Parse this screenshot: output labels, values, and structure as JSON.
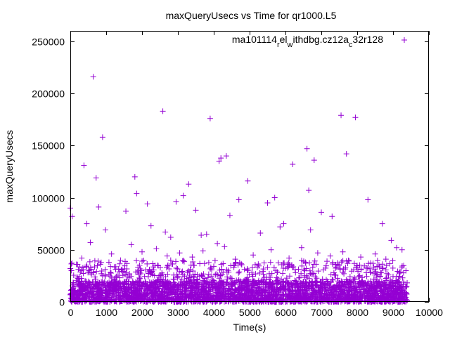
{
  "chart_data": {
    "type": "scatter",
    "title": "maxQueryUsecs vs Time for qr1000.L5",
    "xlabel": "Time(s)",
    "ylabel": "maxQueryUsecs",
    "xlim": [
      0,
      10000
    ],
    "ylim": [
      0,
      260000
    ],
    "xticks": [
      0,
      1000,
      2000,
      3000,
      4000,
      5000,
      6000,
      7000,
      8000,
      9000,
      10000
    ],
    "yticks": [
      0,
      50000,
      100000,
      150000,
      200000,
      250000
    ],
    "xtick_labels": [
      "0",
      "1000",
      "2000",
      "3000",
      "4000",
      "5000",
      "6000",
      "7000",
      "8000",
      "9000",
      "10000"
    ],
    "ytick_labels": [
      "0",
      "50000",
      "100000",
      "150000",
      "200000",
      "250000"
    ],
    "grid": false,
    "legend_position": "top-right",
    "marker": "+",
    "color": "#9400d3",
    "series": [
      {
        "legend_parts": [
          "ma101114",
          "r",
          "el",
          "w",
          "ithdbg.cz12a",
          "c",
          "32r128"
        ],
        "dense_band": {
          "x_range": [
            0,
            9400
          ],
          "y_range": [
            0,
            20000
          ]
        },
        "x": [
          0,
          50,
          380,
          460,
          640,
          720,
          790,
          900,
          980,
          1550,
          1800,
          1850,
          2150,
          2250,
          2580,
          2650,
          2800,
          2950,
          3150,
          3300,
          3500,
          3650,
          3800,
          3900,
          4100,
          4150,
          4200,
          4350,
          4450,
          4700,
          4950,
          5300,
          5500,
          5700,
          5850,
          5950,
          6200,
          6600,
          6650,
          6700,
          6800,
          7000,
          7300,
          7550,
          7700,
          7950,
          8300,
          8700,
          8950,
          9100,
          320,
          560,
          1150,
          1400,
          1700,
          2000,
          2400,
          2700,
          3050,
          3400,
          3700,
          4300,
          4600,
          5100,
          5600,
          6100,
          6450,
          6900,
          7250,
          7600,
          8100,
          8500,
          8800,
          9250
        ],
        "y": [
          90000,
          82000,
          131000,
          75000,
          216000,
          119000,
          91000,
          158000,
          69000,
          87000,
          120000,
          104000,
          94000,
          73000,
          183000,
          67000,
          62000,
          96000,
          102000,
          113000,
          88000,
          64000,
          65000,
          176000,
          56000,
          135000,
          138000,
          140000,
          83000,
          98000,
          116000,
          66000,
          95000,
          100000,
          72000,
          75000,
          132000,
          147000,
          107000,
          69000,
          136000,
          86000,
          82000,
          179000,
          142000,
          177000,
          98000,
          75000,
          59000,
          52000,
          42000,
          57000,
          46000,
          40000,
          55000,
          48000,
          51000,
          44000,
          47000,
          43000,
          49000,
          53000,
          41000,
          45000,
          50000,
          42000,
          52000,
          47000,
          44000,
          48000,
          43000,
          46000,
          41000,
          50000
        ]
      }
    ]
  }
}
